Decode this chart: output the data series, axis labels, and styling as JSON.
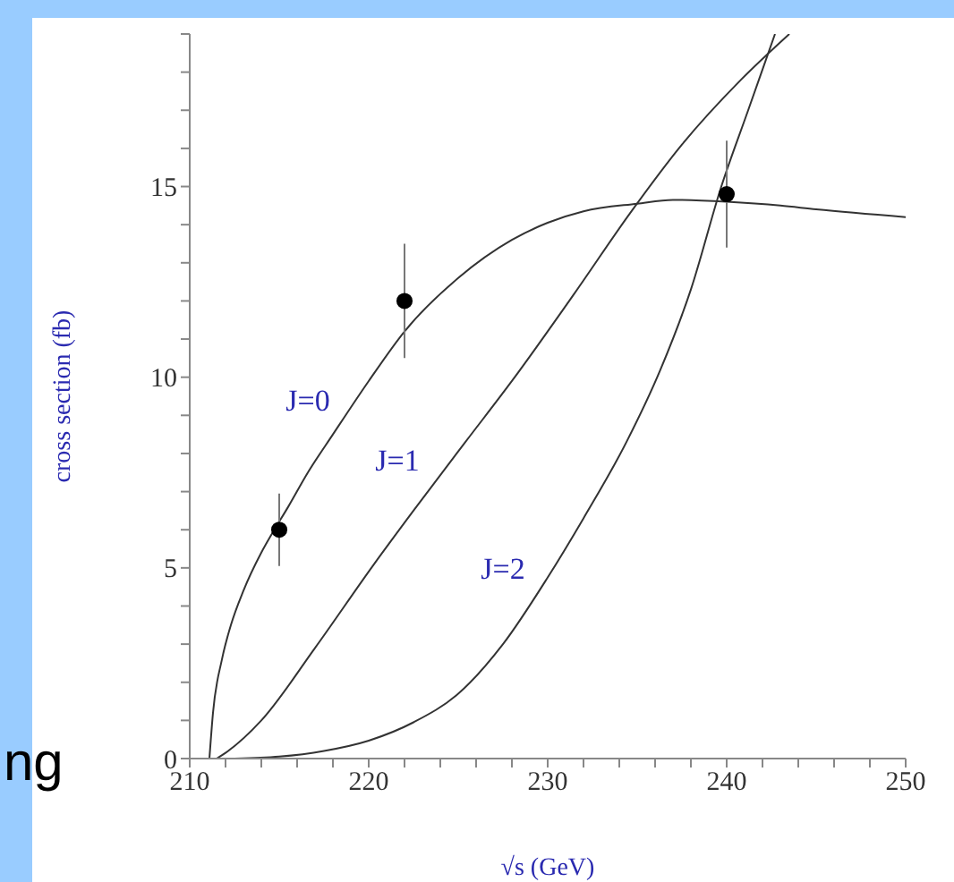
{
  "chart_data": {
    "type": "line",
    "xlabel": "√s (GeV)",
    "ylabel": "cross section (fb)",
    "xlim": [
      210,
      250
    ],
    "ylim": [
      0,
      19
    ],
    "xticks": [
      210,
      {
        "value": 212,
        "label": null
      },
      {
        "value": 214,
        "label": null
      },
      {
        "value": 216,
        "label": null
      },
      {
        "value": 218,
        "label": null
      },
      220,
      {
        "value": 222,
        "label": null
      },
      {
        "value": 224,
        "label": null
      },
      {
        "value": 226,
        "label": null
      },
      {
        "value": 228,
        "label": null
      },
      230,
      {
        "value": 232,
        "label": null
      },
      {
        "value": 234,
        "label": null
      },
      {
        "value": 236,
        "label": null
      },
      {
        "value": 238,
        "label": null
      },
      240,
      {
        "value": 242,
        "label": null
      },
      {
        "value": 244,
        "label": null
      },
      {
        "value": 246,
        "label": null
      },
      {
        "value": 248,
        "label": null
      },
      250
    ],
    "yticks": [
      0,
      {
        "value": 1,
        "label": null
      },
      {
        "value": 2,
        "label": null
      },
      {
        "value": 3,
        "label": null
      },
      {
        "value": 4,
        "label": null
      },
      5,
      {
        "value": 6,
        "label": null
      },
      {
        "value": 7,
        "label": null
      },
      {
        "value": 8,
        "label": null
      },
      {
        "value": 9,
        "label": null
      },
      10,
      {
        "value": 11,
        "label": null
      },
      {
        "value": 12,
        "label": null
      },
      {
        "value": 13,
        "label": null
      },
      {
        "value": 14,
        "label": null
      },
      15,
      {
        "value": 16,
        "label": null
      },
      {
        "value": 17,
        "label": null
      },
      {
        "value": 18,
        "label": null
      },
      {
        "value": 19,
        "label": null
      }
    ],
    "grid": false,
    "legend": false,
    "marker": "none",
    "line_style": "solid",
    "annotations": [
      "ng"
    ],
    "series": [
      {
        "name": "J=0",
        "color": "#333333",
        "x": [
          211.1,
          211.3,
          211.8,
          212.3,
          213,
          214,
          214.6,
          215.5,
          216.6,
          218,
          220,
          222,
          225,
          228,
          230,
          232,
          235,
          237,
          240,
          243,
          245,
          250
        ],
        "values": [
          0,
          1.2,
          2.6,
          3.5,
          4.4,
          5.4,
          5.9,
          6.6,
          7.5,
          8.5,
          9.9,
          11.2,
          12.6,
          13.6,
          14.05,
          14.35,
          14.55,
          14.65,
          14.6,
          14.5,
          14.4,
          14.2
        ]
      },
      {
        "name": "J=1",
        "color": "#333333",
        "x": [
          211.5,
          212,
          214,
          217,
          220.3,
          222.5,
          225.4,
          228,
          231.5,
          234.6,
          237.5,
          240.8,
          243.5
        ],
        "values": [
          0,
          0.15,
          1,
          2.9,
          5.1,
          6.5,
          8.3,
          9.9,
          12.2,
          14.3,
          16.1,
          17.8,
          19
        ]
      },
      {
        "name": "J=2",
        "color": "#333333",
        "x": [
          212.5,
          215,
          217.5,
          220,
          222.5,
          225,
          227.5,
          230,
          232,
          234.4,
          236.3,
          238,
          239.7,
          241.2,
          242.7
        ],
        "values": [
          0,
          0.05,
          0.2,
          0.47,
          0.95,
          1.7,
          3,
          4.75,
          6.3,
          8.3,
          10.2,
          12.3,
          15,
          17,
          19
        ]
      },
      {
        "type": "scatter",
        "color": "#000000",
        "marker": "circle",
        "x": [
          215,
          222,
          240
        ],
        "values": [
          6,
          12,
          14.8
        ],
        "errors": [
          0.95,
          1.5,
          1.4
        ]
      }
    ]
  }
}
